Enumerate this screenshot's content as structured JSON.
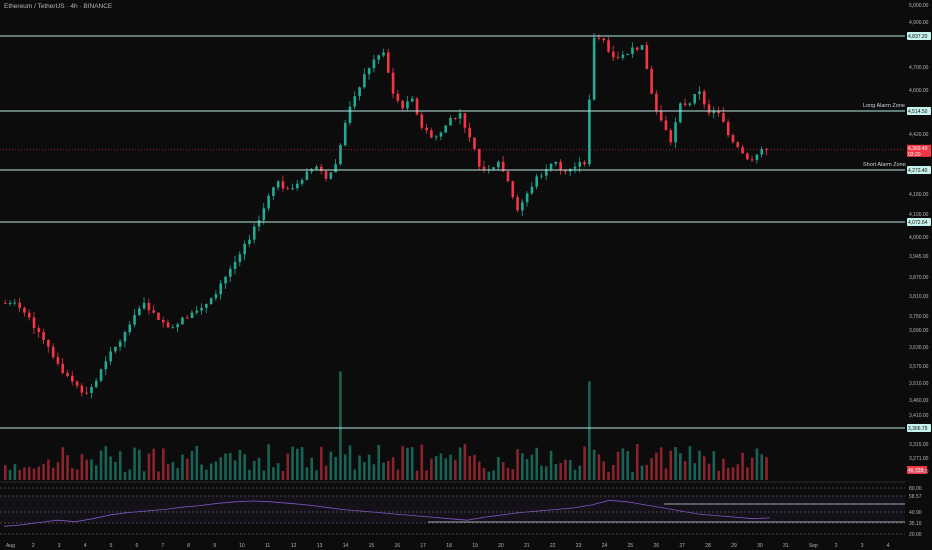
{
  "header": {
    "title": "Ethereum / TetherUS · 4h · BINANCE"
  },
  "colors": {
    "background": "#0c0c0c",
    "up": "#22ab94",
    "down": "#f23645",
    "level_line": "#b9e7e3",
    "rsi_line": "#7e57c2",
    "text": "#b2b5be"
  },
  "chart_data": {
    "type": "candlestick",
    "price_axis": {
      "ticks": [
        "5,000.00",
        "4,900.00",
        "4,700.00",
        "4,600.00",
        "4,420.00",
        "4,180.00",
        "4,100.00",
        "4,000.00",
        "3,945.00",
        "3,870.00",
        "3,810.00",
        "3,750.00",
        "3,690.00",
        "3,630.00",
        "3,570.00",
        "3,510.00",
        "3,460.00",
        "3,410.00",
        "3,315.00",
        "3,271.00",
        "3,215.00"
      ]
    },
    "time_axis": {
      "labels": [
        "Aug",
        "2",
        "3",
        "4",
        "5",
        "6",
        "7",
        "8",
        "9",
        "10",
        "11",
        "12",
        "13",
        "14",
        "15",
        "16",
        "17",
        "18",
        "19",
        "20",
        "21",
        "22",
        "23",
        "24",
        "25",
        "26",
        "27",
        "28",
        "29",
        "30",
        "31",
        "Sep",
        "2",
        "3",
        "4"
      ]
    },
    "levels": [
      {
        "price_label": "4,837.20",
        "zone_label": ""
      },
      {
        "price_label": "4,514.50",
        "zone_label": "Long Alarm Zone"
      },
      {
        "price_label": "4,273.40",
        "zone_label": "Short Alarm Zone"
      },
      {
        "price_label": "4,072.64",
        "zone_label": ""
      },
      {
        "price_label": "3,366.79",
        "zone_label": ""
      }
    ],
    "last_price": {
      "price": "4,369.40",
      "countdown": "03:20"
    },
    "volume_badge": "46,728",
    "ohlc_path_approx": [
      3740,
      3720,
      3680,
      3620,
      3560,
      3490,
      3440,
      3400,
      3370,
      3420,
      3500,
      3560,
      3620,
      3690,
      3740,
      3700,
      3660,
      3640,
      3680,
      3700,
      3720,
      3760,
      3820,
      3880,
      3940,
      4000,
      4080,
      4180,
      4240,
      4210,
      4230,
      4280,
      4300,
      4250,
      4310,
      4480,
      4590,
      4680,
      4740,
      4770,
      4600,
      4540,
      4580,
      4460,
      4420,
      4440,
      4500,
      4520,
      4420,
      4300,
      4290,
      4320,
      4240,
      4120,
      4190,
      4260,
      4290,
      4320,
      4280,
      4300,
      4310,
      4830,
      4820,
      4750,
      4760,
      4790,
      4800,
      4600,
      4490,
      4400,
      4560,
      4560,
      4610,
      4520,
      4520,
      4430,
      4380,
      4330,
      4350,
      4369
    ],
    "rsi": {
      "levels": [
        "80.00",
        "58.57",
        "40.90",
        "35.10",
        "20.00"
      ],
      "values": [
        30,
        32,
        35,
        38,
        36,
        40,
        45,
        48,
        50,
        52,
        55,
        57,
        60,
        62,
        63,
        62,
        60,
        58,
        55,
        52,
        50,
        48,
        46,
        44,
        42,
        40,
        38,
        42,
        45,
        48,
        50,
        52,
        54,
        58,
        64,
        62,
        58,
        54,
        50,
        46,
        44,
        42,
        40,
        41
      ]
    }
  }
}
